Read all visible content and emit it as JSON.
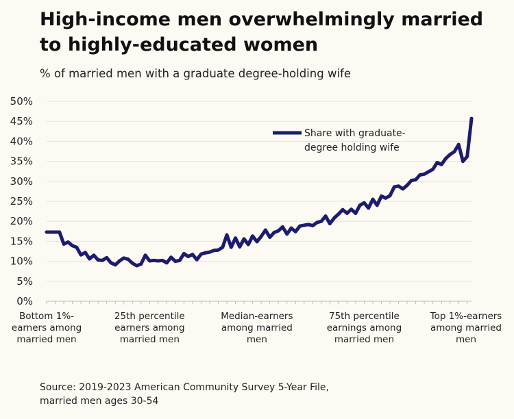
{
  "chart_data": {
    "type": "line",
    "title": "High-income men overwhelmingly married to highly-educated women",
    "subtitle": "% of married men with a graduate degree-holding wife",
    "source": "Source: 2019-2023 American Community Survey 5-Year File, married men ages 30-54",
    "xlabel": "",
    "ylabel": "",
    "ylim": [
      0,
      50
    ],
    "yticks": [
      "0%",
      "5%",
      "10%",
      "15%",
      "20%",
      "25%",
      "30%",
      "35%",
      "40%",
      "45%",
      "50%"
    ],
    "xtick_labels": [
      [
        "Bottom 1%-",
        "earners among",
        "married men"
      ],
      [
        "25th percentile",
        "earners among",
        "married men"
      ],
      [
        "Median-earners",
        "among married",
        "men"
      ],
      [
        "75th percentile",
        "earnings among",
        "married men"
      ],
      [
        "Top 1%-earners",
        "among married",
        "men"
      ]
    ],
    "xtick_positions": [
      1,
      25,
      50,
      75,
      100
    ],
    "legend": [
      "Share with graduate-",
      "degree holding wife"
    ],
    "legend_placement": "top-right",
    "series": [
      {
        "name": "Share with graduate-degree holding wife",
        "color": "#1c1c6e",
        "x": [
          1,
          2,
          3,
          4,
          5,
          6,
          7,
          8,
          9,
          10,
          11,
          12,
          13,
          14,
          15,
          16,
          17,
          18,
          19,
          20,
          21,
          22,
          23,
          24,
          25,
          26,
          27,
          28,
          29,
          30,
          31,
          32,
          33,
          34,
          35,
          36,
          37,
          38,
          39,
          40,
          41,
          42,
          43,
          44,
          45,
          46,
          47,
          48,
          49,
          50,
          51,
          52,
          53,
          54,
          55,
          56,
          57,
          58,
          59,
          60,
          61,
          62,
          63,
          64,
          65,
          66,
          67,
          68,
          69,
          70,
          71,
          72,
          73,
          74,
          75,
          76,
          77,
          78,
          79,
          80,
          81,
          82,
          83,
          84,
          85,
          86,
          87,
          88,
          89,
          90,
          91,
          92,
          93,
          94,
          95,
          96,
          97,
          98,
          99,
          100
        ],
        "values": [
          17.3,
          17.3,
          17.3,
          17.3,
          14.3,
          14.8,
          13.9,
          13.5,
          11.6,
          12.2,
          10.6,
          11.5,
          10.3,
          10.2,
          10.9,
          9.6,
          9.1,
          10.1,
          10.8,
          10.5,
          9.5,
          8.9,
          9.3,
          11.5,
          10.1,
          10.2,
          10.1,
          10.2,
          9.6,
          11.0,
          10.0,
          10.2,
          11.9,
          11.2,
          11.7,
          10.4,
          11.8,
          12.1,
          12.3,
          12.7,
          12.8,
          13.5,
          16.6,
          13.5,
          15.8,
          13.6,
          15.6,
          14.2,
          16.3,
          14.9,
          16.2,
          17.8,
          16.0,
          17.2,
          17.6,
          18.6,
          16.8,
          18.3,
          17.4,
          18.8,
          19.0,
          19.2,
          18.9,
          19.7,
          20.0,
          21.3,
          19.4,
          20.8,
          21.8,
          22.9,
          22.0,
          23.0,
          22.0,
          24.0,
          24.6,
          23.3,
          25.5,
          24.0,
          26.3,
          25.8,
          26.4,
          28.6,
          28.8,
          28.1,
          29.0,
          30.2,
          30.4,
          31.6,
          31.8,
          32.4,
          33.0,
          34.7,
          34.2,
          35.7,
          36.7,
          37.4,
          39.2,
          35.0,
          36.2,
          45.7
        ]
      }
    ]
  }
}
